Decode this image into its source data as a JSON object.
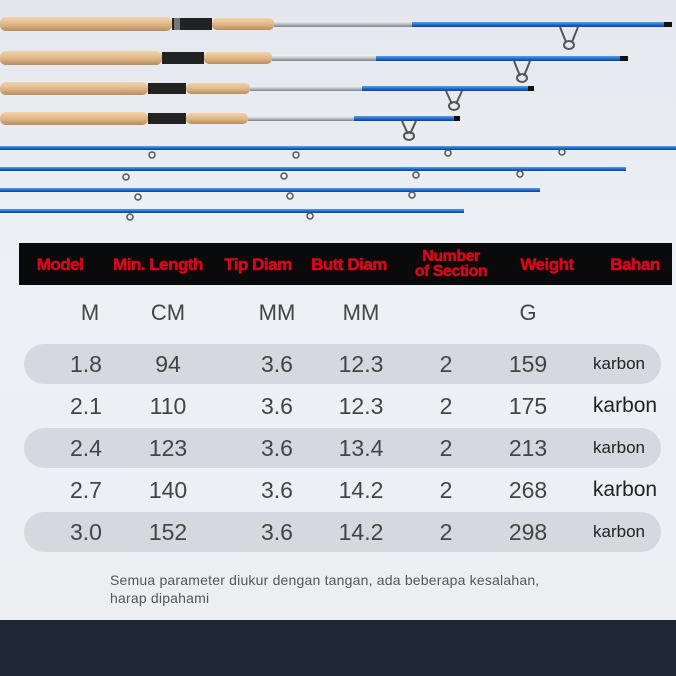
{
  "table": {
    "headers": {
      "model": "Model",
      "min_length": "Min. Length",
      "tip_diam": "Tip Diam",
      "butt_diam": "Butt Diam",
      "number_of_section_line1": "Number",
      "number_of_section_line2": "of Section",
      "weight": "Weight",
      "bahan": "Bahan"
    },
    "units": {
      "model": "M",
      "min_length": "CM",
      "tip_diam": "MM",
      "butt_diam": "MM",
      "weight": "G"
    },
    "rows": [
      {
        "model": "1.8",
        "min_length": "94",
        "tip_diam": "3.6",
        "butt_diam": "12.3",
        "sections": "2",
        "weight": "159",
        "bahan": "karbon"
      },
      {
        "model": "2.1",
        "min_length": "110",
        "tip_diam": "3.6",
        "butt_diam": "12.3",
        "sections": "2",
        "weight": "175",
        "bahan": "karbon"
      },
      {
        "model": "2.4",
        "min_length": "123",
        "tip_diam": "3.6",
        "butt_diam": "13.4",
        "sections": "2",
        "weight": "213",
        "bahan": "karbon"
      },
      {
        "model": "2.7",
        "min_length": "140",
        "tip_diam": "3.6",
        "butt_diam": "14.2",
        "sections": "2",
        "weight": "268",
        "bahan": "karbon"
      },
      {
        "model": "3.0",
        "min_length": "152",
        "tip_diam": "3.6",
        "butt_diam": "14.2",
        "sections": "2",
        "weight": "298",
        "bahan": "karbon"
      }
    ]
  },
  "note": {
    "line1": "Semua parameter diukur dengan tangan, ada beberapa kesalahan,",
    "line2": "harap dipahami"
  },
  "colors": {
    "header_bg": "#0a0a0a",
    "header_text": "#e3001b",
    "rod_blue": "#1f6fd6",
    "cork": "#e0b98a",
    "footer": "#1d2834"
  }
}
